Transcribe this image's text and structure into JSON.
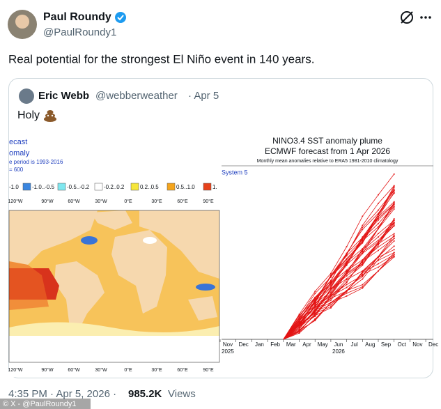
{
  "header": {
    "name": "Paul Roundy",
    "handle": "@PaulRoundy1"
  },
  "tweet": {
    "text": "Real potential for the strongest El Niño event in 140 years."
  },
  "quote": {
    "name": "Eric Webb",
    "handle": "@webberweather",
    "date": "· Apr 5",
    "text": "Holy"
  },
  "map": {
    "title_lines": [
      "ecast",
      "omaly",
      "e period is 1993-2016",
      "= 600"
    ],
    "legend": [
      "-1.0",
      "-1.0..-0.5",
      "-0.5..-0.2",
      "-0.2..0.2",
      "0.2..0.5",
      "0.5..1.0",
      "1."
    ],
    "lon_labels": [
      "120°W",
      "90°W",
      "60°W",
      "30°W",
      "0°E",
      "30°E",
      "60°E",
      "90°E"
    ]
  },
  "plume": {
    "title": "NINO3.4 SST anomaly plume",
    "subtitle": "ECMWF forecast from 1 Apr 2026",
    "caption": "Monthly mean anomalies relative to ERA5 1981-2010 climatology",
    "system": "System 5",
    "months": [
      "Nov",
      "Dec",
      "Jan",
      "Feb",
      "Mar",
      "Apr",
      "May",
      "Jun",
      "Jul",
      "Aug",
      "Sep",
      "Oct",
      "Nov",
      "Dec"
    ],
    "years": [
      "2025",
      "2026"
    ]
  },
  "footer": {
    "time": "4:35 PM · Apr 5, 2026 ·",
    "views": "985.2K",
    "views_label": "Views",
    "watermark": "© X - @PaulRoundy1"
  }
}
